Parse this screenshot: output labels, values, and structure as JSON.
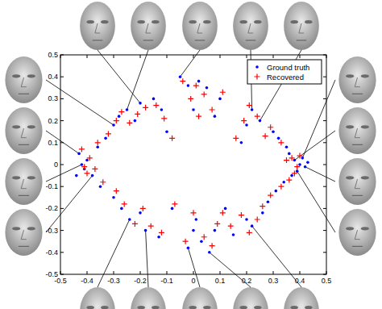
{
  "chart_data": {
    "type": "scatter",
    "xlim": [
      -0.5,
      0.5
    ],
    "ylim": [
      -0.5,
      0.5
    ],
    "xticks": [
      -0.5,
      -0.4,
      -0.3,
      -0.2,
      -0.1,
      0,
      0.1,
      0.2,
      0.3,
      0.4,
      0.5
    ],
    "yticks": [
      -0.5,
      -0.4,
      -0.3,
      -0.2,
      -0.1,
      0,
      0.1,
      0.2,
      0.3,
      0.4,
      0.5
    ],
    "legend": "upper right",
    "series": [
      {
        "name": "Ground truth",
        "color": "#0000ff",
        "marker": "dot",
        "x": [
          0.38,
          0.4,
          0.42,
          0.41,
          0.39,
          0.36,
          0.37,
          0.43,
          0.35,
          0.34,
          0.32,
          0.3,
          0.31,
          0.28,
          0.25,
          0.22,
          0.2,
          0.18,
          0.26,
          0.22,
          0.2,
          0.15,
          0.12,
          0.1,
          0.08,
          0.05,
          0.02,
          -0.02,
          0.0,
          0.03,
          0.06,
          0.01,
          0.08,
          -0.4,
          -0.42,
          -0.41,
          -0.43,
          -0.38,
          -0.44,
          -0.36,
          -0.35,
          -0.33,
          -0.3,
          -0.28,
          -0.25,
          -0.22,
          -0.2,
          -0.15,
          -0.12,
          -0.3,
          -0.27,
          -0.24,
          -0.2,
          -0.18,
          -0.13,
          -0.08,
          -0.05,
          -0.1,
          -0.02,
          0.0
        ],
        "values": [
          0.02,
          0.0,
          -0.01,
          0.03,
          -0.03,
          0.05,
          -0.05,
          0.01,
          0.08,
          -0.08,
          0.12,
          0.15,
          -0.12,
          -0.17,
          0.2,
          0.25,
          0.18,
          0.1,
          -0.22,
          -0.28,
          -0.25,
          -0.32,
          -0.2,
          0.3,
          0.22,
          0.35,
          0.38,
          0.36,
          0.25,
          -0.35,
          -0.4,
          -0.25,
          -0.3,
          0.02,
          0.0,
          -0.02,
          0.05,
          -0.05,
          -0.05,
          0.08,
          -0.1,
          0.12,
          0.18,
          0.22,
          0.25,
          0.2,
          0.28,
          0.3,
          0.25,
          -0.15,
          -0.2,
          -0.25,
          -0.22,
          -0.3,
          -0.33,
          -0.2,
          0.4,
          0.15,
          -0.38,
          -0.3
        ]
      },
      {
        "name": "Recovered",
        "color": "#ff0000",
        "marker": "plus",
        "x": [
          0.37,
          0.39,
          0.4,
          0.38,
          0.35,
          0.36,
          0.33,
          0.33,
          0.29,
          0.27,
          0.29,
          0.26,
          0.24,
          0.21,
          0.19,
          0.16,
          0.24,
          0.21,
          0.18,
          0.14,
          0.11,
          0.11,
          0.07,
          0.04,
          0.01,
          -0.01,
          0.02,
          0.04,
          0.07,
          0.0,
          0.09,
          -0.39,
          -0.41,
          -0.4,
          -0.42,
          -0.37,
          -0.36,
          -0.34,
          -0.32,
          -0.29,
          -0.27,
          -0.24,
          -0.21,
          -0.18,
          -0.14,
          -0.11,
          -0.29,
          -0.26,
          -0.22,
          -0.19,
          -0.16,
          -0.12,
          -0.07,
          -0.04,
          -0.08,
          -0.03
        ],
        "values": [
          0.03,
          -0.01,
          0.04,
          -0.04,
          0.02,
          -0.07,
          0.1,
          -0.1,
          0.17,
          0.13,
          -0.14,
          -0.19,
          0.22,
          0.27,
          0.2,
          0.12,
          -0.25,
          -0.31,
          -0.23,
          -0.28,
          -0.22,
          0.33,
          0.25,
          0.32,
          0.36,
          0.3,
          0.22,
          -0.33,
          -0.37,
          -0.22,
          -0.27,
          0.03,
          -0.01,
          -0.04,
          0.07,
          -0.02,
          0.1,
          -0.08,
          0.14,
          0.2,
          0.24,
          0.19,
          0.23,
          0.26,
          0.27,
          0.21,
          -0.12,
          -0.18,
          -0.27,
          -0.2,
          -0.28,
          -0.31,
          -0.18,
          0.38,
          0.12,
          -0.35
        ]
      }
    ]
  }
}
